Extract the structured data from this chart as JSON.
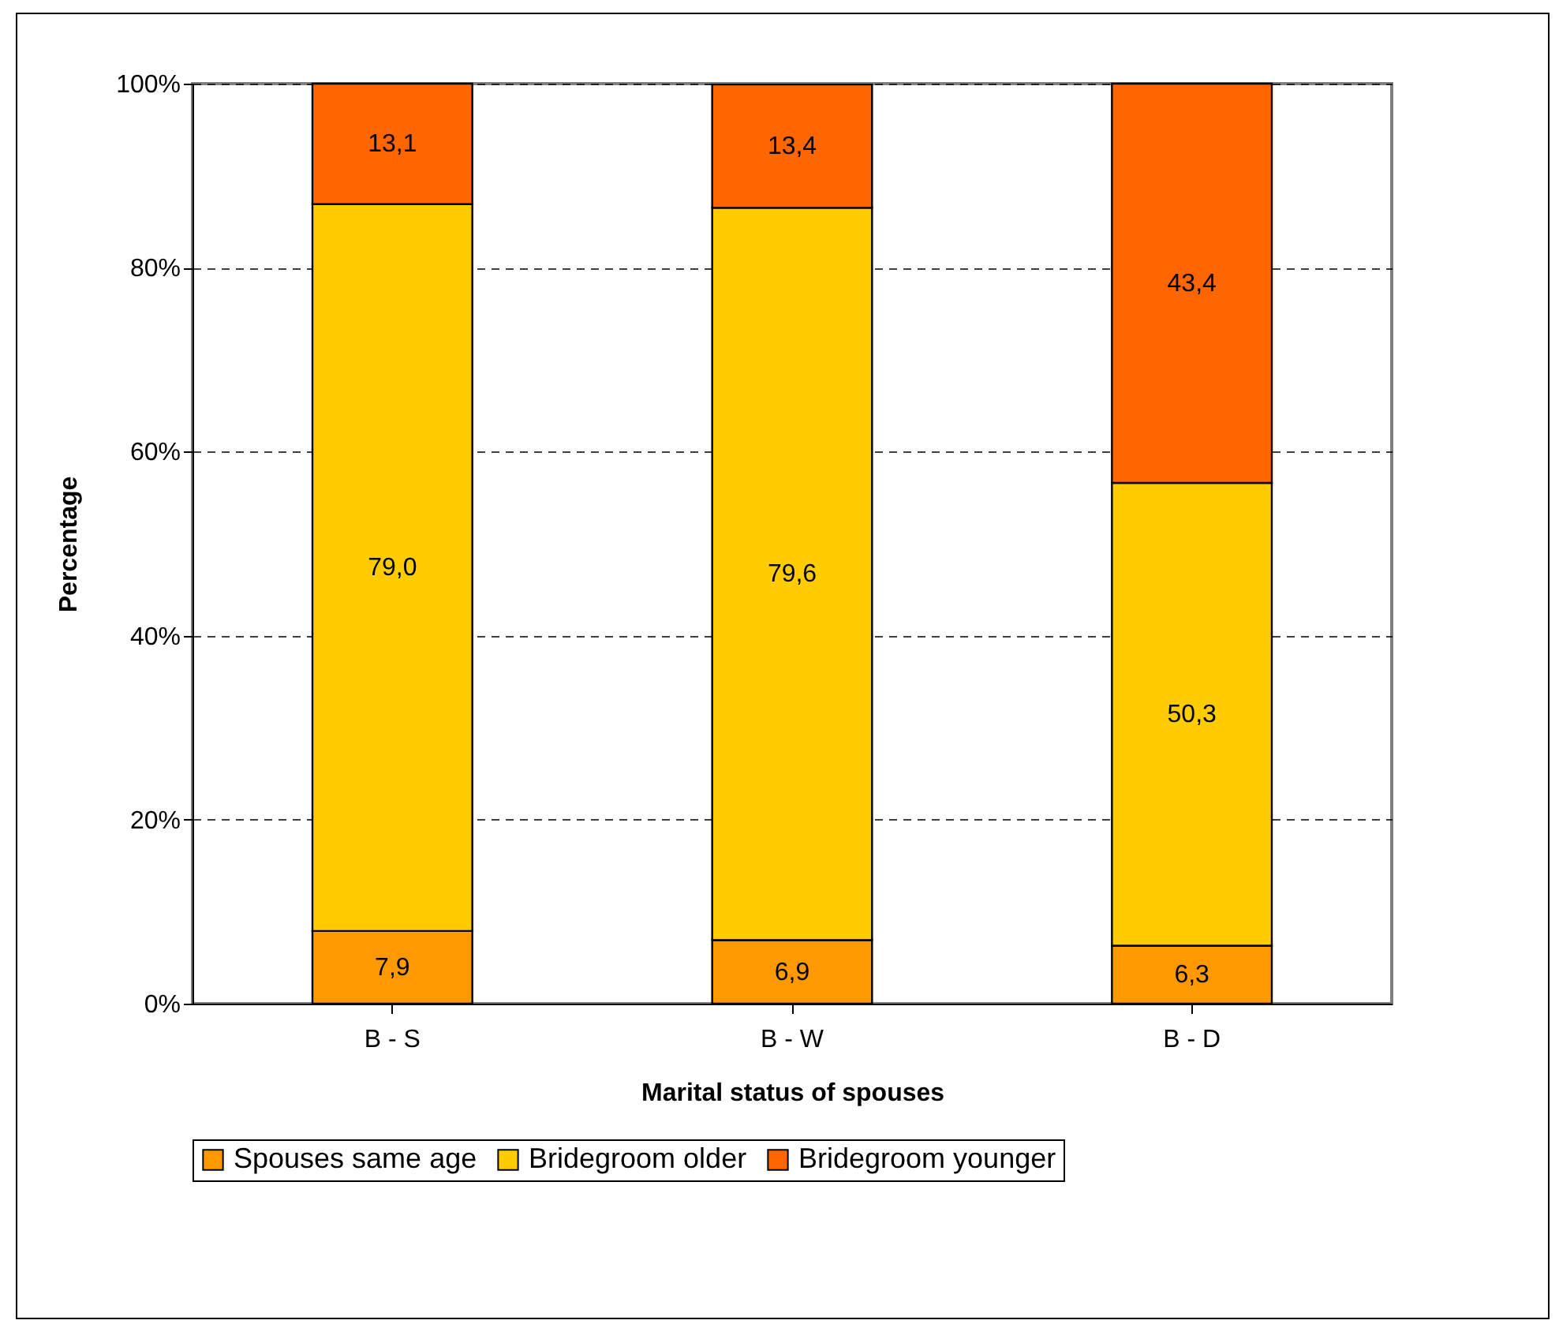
{
  "chart_data": {
    "type": "bar",
    "stacked": true,
    "xlabel": "Marital status of spouses",
    "ylabel": "Percentage",
    "categories": [
      "B - S",
      "B - W",
      "B - D"
    ],
    "series": [
      {
        "name": "Spouses same age",
        "color": "#ff9900",
        "values": [
          7.9,
          6.9,
          6.3
        ],
        "value_labels": [
          "7,9",
          "6,9",
          "6,3"
        ]
      },
      {
        "name": "Bridegroom older",
        "color": "#ffcc00",
        "values": [
          79.0,
          79.6,
          50.3
        ],
        "value_labels": [
          "79,0",
          "79,6",
          "50,3"
        ]
      },
      {
        "name": "Bridegroom younger",
        "color": "#ff6600",
        "values": [
          13.1,
          13.4,
          43.4
        ],
        "value_labels": [
          "13,1",
          "13,4",
          "43,4"
        ]
      }
    ],
    "ylim": [
      0,
      100
    ],
    "yticks": [
      {
        "value": 0,
        "label": "0%"
      },
      {
        "value": 20,
        "label": "20%"
      },
      {
        "value": 40,
        "label": "40%"
      },
      {
        "value": 60,
        "label": "60%"
      },
      {
        "value": 80,
        "label": "80%"
      },
      {
        "value": 100,
        "label": "100%"
      }
    ],
    "grid": "y",
    "legend": "bottom"
  }
}
